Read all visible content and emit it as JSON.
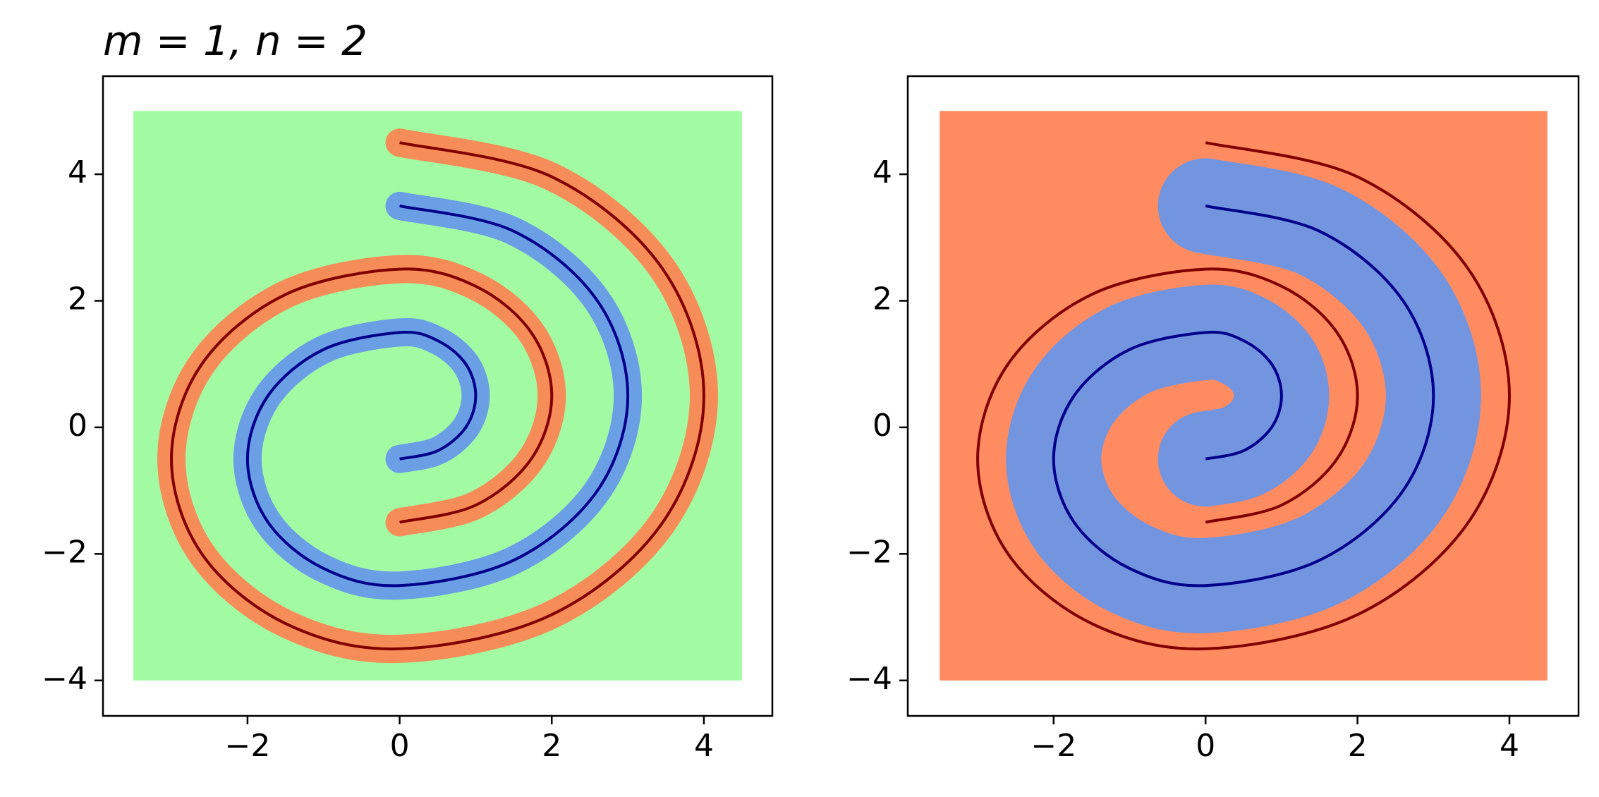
{
  "chart_data": [
    {
      "type": "line",
      "title": "m = 1, n = 2",
      "xlim": [
        -3.9,
        4.9
      ],
      "ylim": [
        -4.56,
        5.55
      ],
      "xticks": [
        {
          "value": -2,
          "label": "−2"
        },
        0,
        2,
        4
      ],
      "yticks": [
        {
          "value": -4,
          "label": "−4"
        },
        {
          "value": -2,
          "label": "−2"
        },
        0,
        2,
        4
      ],
      "background": {
        "color": "#98fb98",
        "x": [
          -3.5,
          4.5
        ],
        "y": [
          -4,
          5
        ]
      },
      "series": [
        {
          "color": "#800000",
          "band_color": "#ff7f50",
          "x": [
            0,
            2,
            3.46,
            4,
            3.46,
            2,
            0,
            -1.5,
            -2.6,
            -3,
            -2.6,
            -1.5,
            0,
            1,
            1.73,
            2,
            1.73,
            1,
            0
          ],
          "y": [
            4.5,
            3.96,
            2.5,
            0.5,
            -1.5,
            -2.96,
            -3.5,
            -3.1,
            -2,
            -0.5,
            1,
            2.1,
            2.5,
            2.23,
            1.5,
            0.5,
            -0.5,
            -1.23,
            -1.5
          ]
        },
        {
          "color": "#00008b",
          "band_color": "#6495ed",
          "x": [
            0,
            1.5,
            2.6,
            3,
            2.6,
            1.5,
            0,
            -1,
            -1.73,
            -2,
            -1.73,
            -1,
            0,
            0.5,
            0.87,
            1,
            0.87,
            0.5,
            0
          ],
          "y": [
            3.5,
            3.1,
            2,
            0.5,
            -1,
            -2.1,
            -2.5,
            -2.23,
            -1.5,
            -0.5,
            0.5,
            1.23,
            1.5,
            1.37,
            1,
            0.5,
            0,
            -0.37,
            -0.5
          ]
        }
      ]
    },
    {
      "type": "line",
      "xlim": [
        -3.92,
        4.91
      ],
      "ylim": [
        -4.56,
        5.55
      ],
      "xticks": [
        {
          "value": -2,
          "label": "−2"
        },
        0,
        2,
        4
      ],
      "yticks": [
        {
          "value": -4,
          "label": "−4"
        },
        {
          "value": -2,
          "label": "−2"
        },
        0,
        2,
        4
      ],
      "background": {
        "color": "#ff7f50",
        "x": [
          -3.5,
          4.5
        ],
        "y": [
          -4,
          5
        ]
      },
      "series": [
        {
          "color": "#800000",
          "x": [
            0,
            2,
            3.46,
            4,
            3.46,
            2,
            0,
            -1.5,
            -2.6,
            -3,
            -2.6,
            -1.5,
            0,
            1,
            1.73,
            2,
            1.73,
            1,
            0
          ],
          "y": [
            4.5,
            3.96,
            2.5,
            0.5,
            -1.5,
            -2.96,
            -3.5,
            -3.1,
            -2,
            -0.5,
            1,
            2.1,
            2.5,
            2.23,
            1.5,
            0.5,
            -0.5,
            -1.23,
            -1.5
          ]
        },
        {
          "color": "#00008b",
          "band_color": "#6495ed",
          "x": [
            0,
            1.5,
            2.6,
            3,
            2.6,
            1.5,
            0,
            -1,
            -1.73,
            -2,
            -1.73,
            -1,
            0,
            0.5,
            0.87,
            1,
            0.87,
            0.5,
            0
          ],
          "y": [
            3.5,
            3.1,
            2,
            0.5,
            -1,
            -2.1,
            -2.5,
            -2.23,
            -1.5,
            -0.5,
            0.5,
            1.23,
            1.5,
            1.37,
            1,
            0.5,
            0,
            -0.37,
            -0.5
          ]
        }
      ]
    }
  ]
}
